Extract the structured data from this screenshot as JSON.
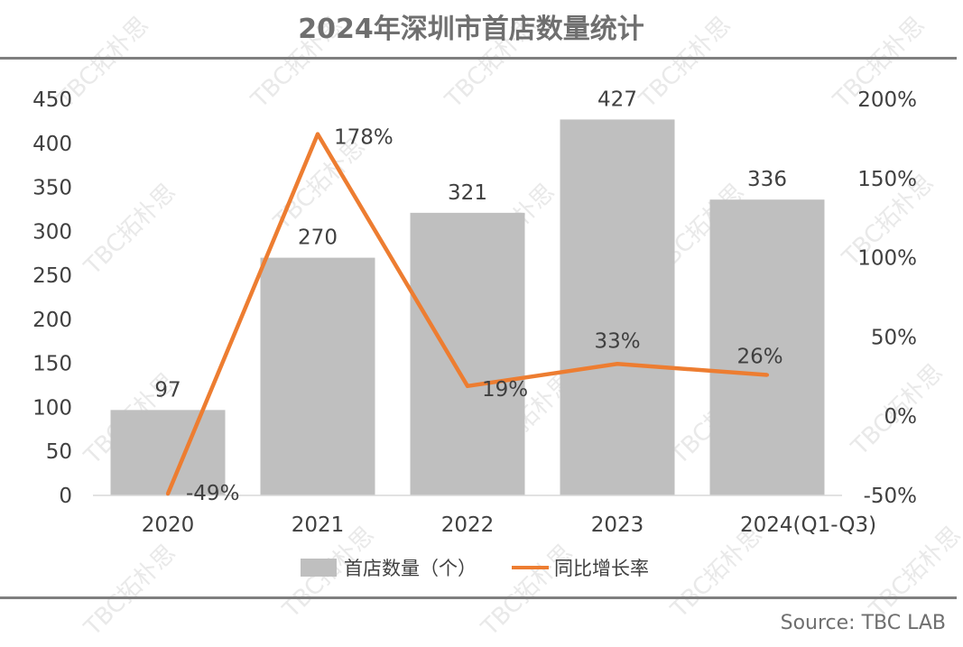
{
  "chart_data": {
    "type": "bar",
    "title": "2024年深圳市首店数量统计",
    "categories": [
      "2020",
      "2021",
      "2022",
      "2023",
      "2024(Q1-Q3)"
    ],
    "series": [
      {
        "name": "首店数量（个）",
        "type": "bar",
        "axis": "left",
        "values": [
          97,
          270,
          321,
          427,
          336
        ],
        "color": "#bfbfbf"
      },
      {
        "name": "同比增长率",
        "type": "line",
        "axis": "right",
        "values": [
          -49,
          178,
          19,
          33,
          26
        ],
        "color": "#ed7d31"
      }
    ],
    "bar_labels": [
      "97",
      "270",
      "321",
      "427",
      "336"
    ],
    "line_labels": [
      "-49%",
      "178%",
      "19%",
      "33%",
      "26%"
    ],
    "y_left": {
      "min": 0,
      "max": 450,
      "step": 50,
      "ticks": [
        "0",
        "50",
        "100",
        "150",
        "200",
        "250",
        "300",
        "350",
        "400",
        "450"
      ]
    },
    "y_right": {
      "min": -50,
      "max": 200,
      "step": 50,
      "ticks": [
        "-50%",
        "0%",
        "50%",
        "100%",
        "150%",
        "200%"
      ]
    },
    "legend_position": "bottom",
    "grid": false
  },
  "source": "Source: TBC LAB",
  "watermark": "TBC拓朴思",
  "colors": {
    "bar": "#bfbfbf",
    "line": "#ed7d31",
    "rule": "#7f7f7f",
    "title": "#6f6f6f",
    "text": "#404040",
    "watermark": "#e9e9e9"
  }
}
